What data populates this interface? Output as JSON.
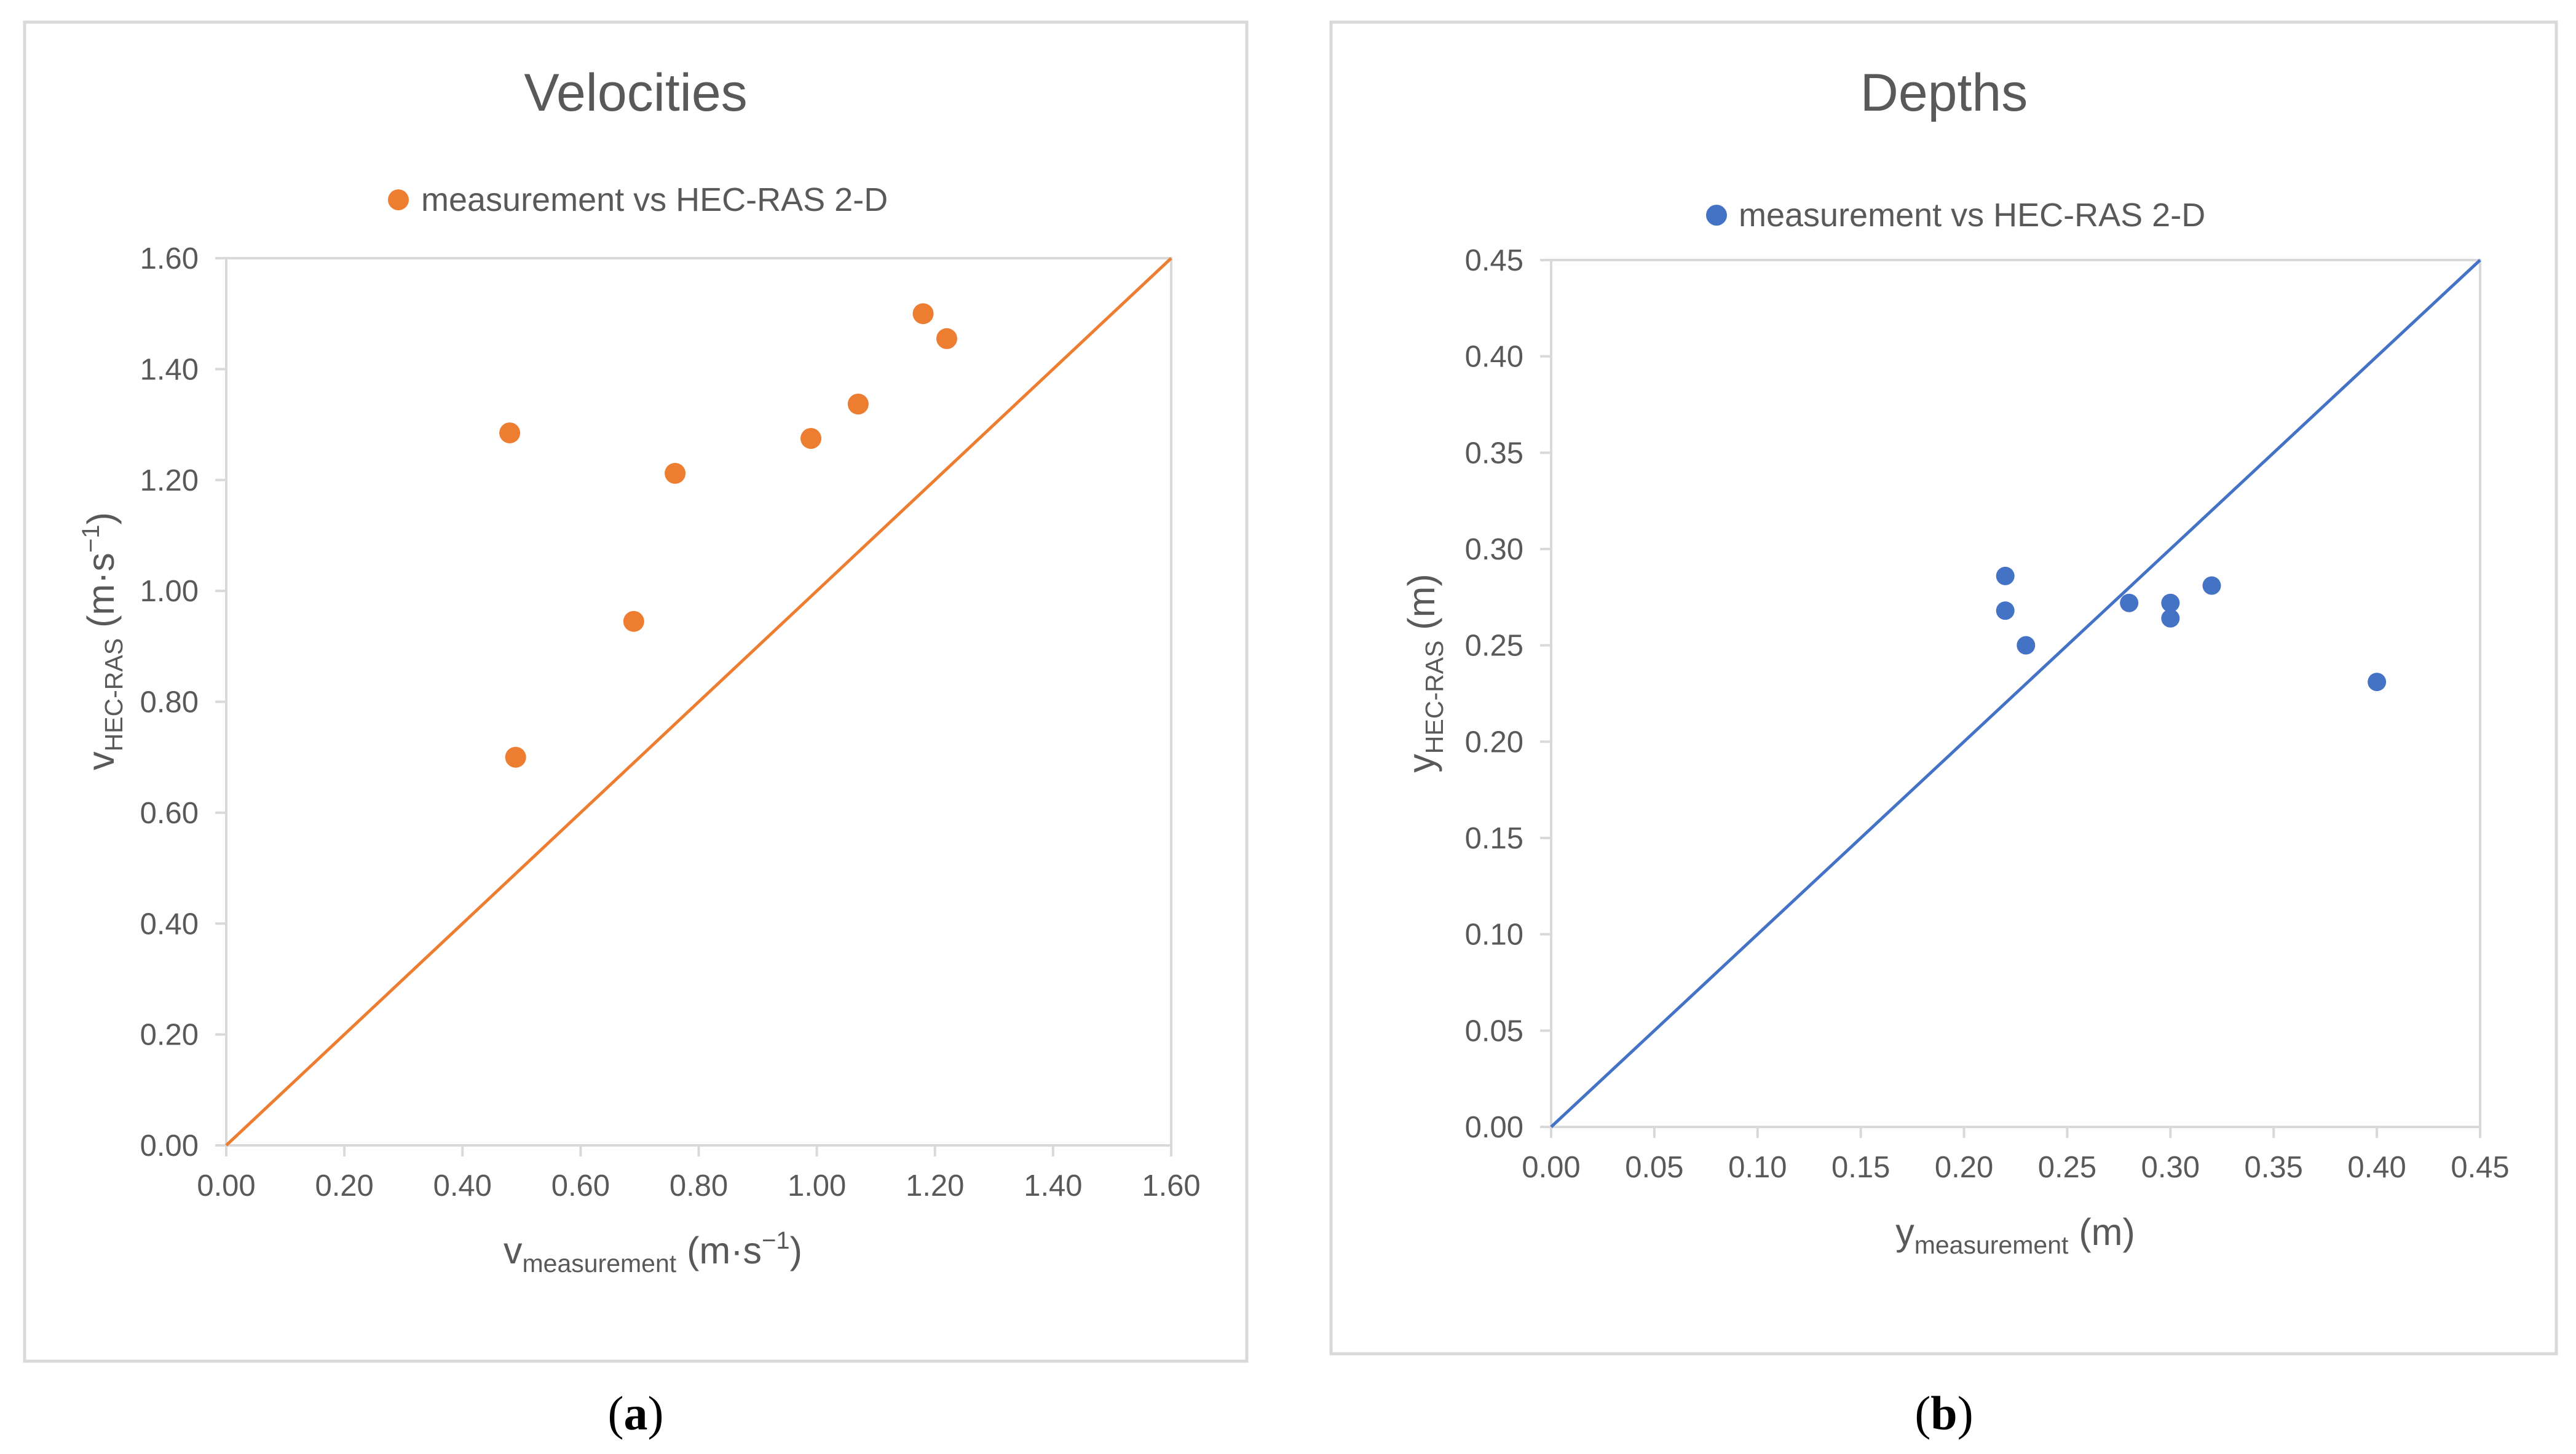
{
  "chart_data": [
    {
      "type": "scatter",
      "panel": "a",
      "title": "Velocities",
      "legend": "measurement vs HEC-RAS 2-D",
      "legend_position": "top",
      "xlabel": {
        "main": "v",
        "sub": "measurement",
        "units_pre": " (m·s",
        "sup": "−1",
        "units_post": ")"
      },
      "ylabel": {
        "main": "v",
        "sub": "HEC-RAS",
        "units_pre": " (m·s",
        "sup": "−1",
        "units_post": ")"
      },
      "xlim": [
        0,
        1.6
      ],
      "ylim": [
        0,
        1.6
      ],
      "xticks": [
        "0.00",
        "0.20",
        "0.40",
        "0.60",
        "0.80",
        "1.00",
        "1.20",
        "1.40",
        "1.60"
      ],
      "yticks": [
        "0.00",
        "0.20",
        "0.40",
        "0.60",
        "0.80",
        "1.00",
        "1.20",
        "1.40",
        "1.60"
      ],
      "grid": false,
      "reference_line": {
        "from": [
          0,
          0
        ],
        "to": [
          1.6,
          1.6
        ]
      },
      "color": "#ED7D31",
      "points": [
        {
          "x": 0.48,
          "y": 1.285
        },
        {
          "x": 0.49,
          "y": 0.7
        },
        {
          "x": 0.69,
          "y": 0.945
        },
        {
          "x": 0.76,
          "y": 1.212
        },
        {
          "x": 0.99,
          "y": 1.275
        },
        {
          "x": 1.07,
          "y": 1.337
        },
        {
          "x": 1.18,
          "y": 1.5
        },
        {
          "x": 1.22,
          "y": 1.455
        }
      ]
    },
    {
      "type": "scatter",
      "panel": "b",
      "title": "Depths",
      "legend": "measurement vs HEC-RAS 2-D",
      "legend_position": "top",
      "xlabel": {
        "main": "y",
        "sub": "measurement",
        "units_pre": " (m)",
        "sup": "",
        "units_post": ""
      },
      "ylabel": {
        "main": "y",
        "sub": "HEC-RAS",
        "units_pre": " (m)",
        "sup": "",
        "units_post": ""
      },
      "xlim": [
        0,
        0.45
      ],
      "ylim": [
        0,
        0.45
      ],
      "xticks": [
        "0.00",
        "0.05",
        "0.10",
        "0.15",
        "0.20",
        "0.25",
        "0.30",
        "0.35",
        "0.40",
        "0.45"
      ],
      "yticks": [
        "0.00",
        "0.05",
        "0.10",
        "0.15",
        "0.20",
        "0.25",
        "0.30",
        "0.35",
        "0.40",
        "0.45"
      ],
      "grid": false,
      "reference_line": {
        "from": [
          0,
          0
        ],
        "to": [
          0.45,
          0.45
        ]
      },
      "color": "#4472C4",
      "points": [
        {
          "x": 0.22,
          "y": 0.286
        },
        {
          "x": 0.22,
          "y": 0.268
        },
        {
          "x": 0.23,
          "y": 0.25
        },
        {
          "x": 0.28,
          "y": 0.272
        },
        {
          "x": 0.3,
          "y": 0.272
        },
        {
          "x": 0.3,
          "y": 0.264
        },
        {
          "x": 0.32,
          "y": 0.281
        },
        {
          "x": 0.4,
          "y": 0.231
        }
      ]
    }
  ],
  "captions": {
    "a": {
      "open": "(",
      "letter": "a",
      "close": ")"
    },
    "b": {
      "open": "(",
      "letter": "b",
      "close": ")"
    }
  }
}
